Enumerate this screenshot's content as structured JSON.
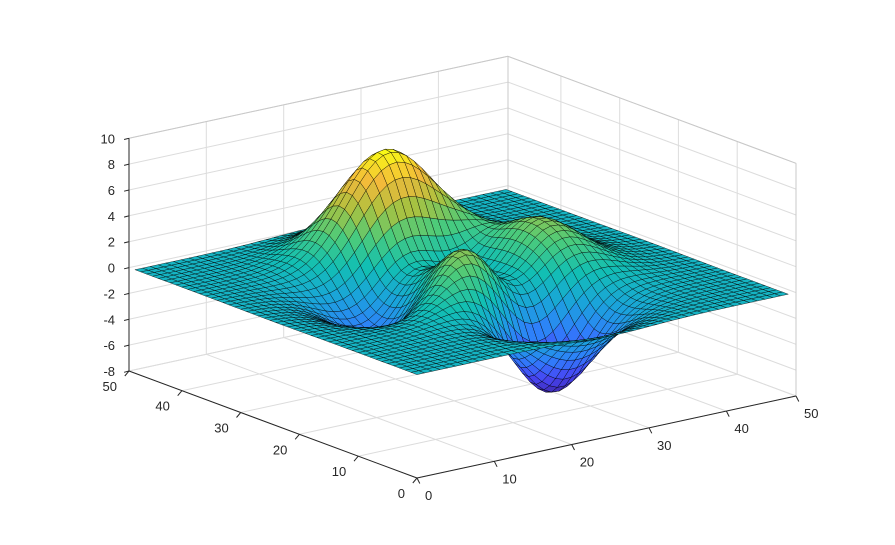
{
  "chart_data": {
    "type": "surface",
    "function": "peaks",
    "x_range": [
      0,
      49
    ],
    "y_range": [
      0,
      49
    ],
    "z_range": [
      -8,
      10
    ],
    "x_ticks": [
      "0",
      "10",
      "20",
      "30",
      "40",
      "50"
    ],
    "y_ticks": [
      "0",
      "10",
      "20",
      "30",
      "40",
      "50"
    ],
    "z_ticks": [
      "-8",
      "-6",
      "-4",
      "-2",
      "0",
      "2",
      "4",
      "6",
      "8",
      "10"
    ],
    "grid": true,
    "colormap": "parula",
    "colormap_stops": [
      "#3e26a8",
      "#4745f4",
      "#2f7ffb",
      "#1aa4da",
      "#12bfb3",
      "#4bcb7b",
      "#acc13f",
      "#f3b93b",
      "#f9fb15"
    ],
    "mesh_edge_color": "#000000",
    "grid_color": "#dcdcdc",
    "axis_color": "#262626"
  }
}
